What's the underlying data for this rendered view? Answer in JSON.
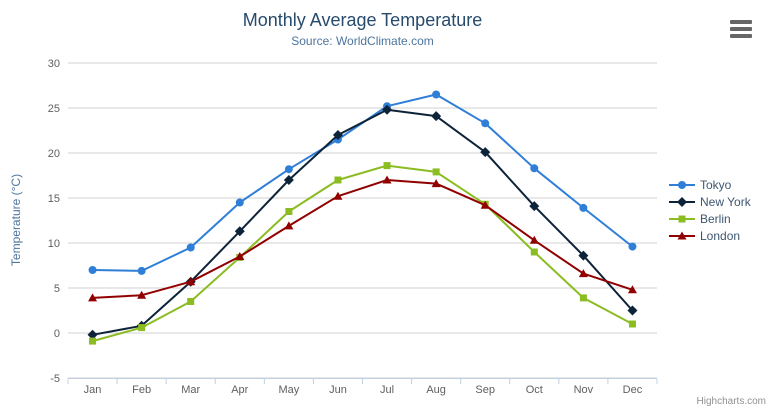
{
  "credit": "Highcharts.com",
  "export_menu": {
    "icon": "hamburger"
  },
  "chart_data": {
    "type": "line",
    "title": "Monthly Average Temperature",
    "subtitle": "Source: WorldClimate.com",
    "categories": [
      "Jan",
      "Feb",
      "Mar",
      "Apr",
      "May",
      "Jun",
      "Jul",
      "Aug",
      "Sep",
      "Oct",
      "Nov",
      "Dec"
    ],
    "xlabel": "",
    "ylabel": "Temperature (°C)",
    "ylim": [
      -5,
      30
    ],
    "yticks": [
      -5,
      0,
      5,
      10,
      15,
      20,
      25,
      30
    ],
    "grid": true,
    "legend_position": "right",
    "series": [
      {
        "name": "Tokyo",
        "color": "#2f7ed8",
        "marker": "circle",
        "values": [
          7.0,
          6.9,
          9.5,
          14.5,
          18.2,
          21.5,
          25.2,
          26.5,
          23.3,
          18.3,
          13.9,
          9.6
        ]
      },
      {
        "name": "New York",
        "color": "#0d233a",
        "marker": "diamond",
        "values": [
          -0.2,
          0.8,
          5.7,
          11.3,
          17.0,
          22.0,
          24.8,
          24.1,
          20.1,
          14.1,
          8.6,
          2.5
        ]
      },
      {
        "name": "Berlin",
        "color": "#8bbc21",
        "marker": "square",
        "values": [
          -0.9,
          0.6,
          3.5,
          8.4,
          13.5,
          17.0,
          18.6,
          17.9,
          14.3,
          9.0,
          3.9,
          1.0
        ]
      },
      {
        "name": "London",
        "color": "#910000",
        "marker": "triangle",
        "values": [
          3.9,
          4.2,
          5.7,
          8.5,
          11.9,
          15.2,
          17.0,
          16.6,
          14.2,
          10.3,
          6.6,
          4.8
        ]
      }
    ],
    "colors": {
      "title": "#274b6d",
      "subtitle": "#4d759e",
      "axis_title": "#4d759e",
      "axis_label": "#606060",
      "grid_line": "#d0d0d0",
      "axis_line": "#c0d0e0",
      "legend_text": "#3e576f",
      "credit": "#909090",
      "menu_icon": "#666666"
    }
  }
}
